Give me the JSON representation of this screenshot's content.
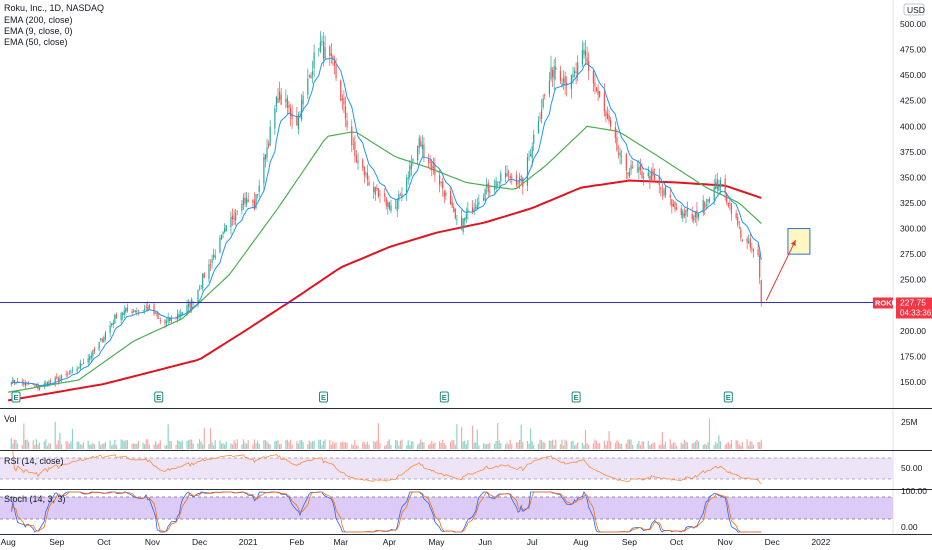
{
  "header": {
    "symbol_title": "Roku, Inc., 1D, NASDAQ",
    "indicators": [
      "EMA (200, close)",
      "EMA (9, close, 0)",
      "EMA (50, close)"
    ],
    "currency": "USD"
  },
  "price_marker": {
    "symbol": "ROKU",
    "price": "227.75",
    "countdown": "04:33:36",
    "color": "#f23645"
  },
  "panes": {
    "volume_label": "Vol",
    "volume_tick": "25M",
    "rsi_label": "RSI (14, close)",
    "rsi_tick": "50.00",
    "stoch_label": "Stoch (14, 3, 3)",
    "stoch_ticks": [
      "100.00",
      "0.00"
    ]
  },
  "earnings_markers": [
    "E",
    "E",
    "E",
    "E",
    "E",
    "E"
  ],
  "colors": {
    "up": "#26a69a",
    "down": "#ef5350",
    "ema200": "#e0141e",
    "ema9": "#2196f3",
    "ema50": "#4caf50",
    "support": "#2f2bd6",
    "rsi_fill": "#e6daf6",
    "stoch_fill": "#d8c4f7"
  },
  "chart_data": {
    "type": "candlestick",
    "title": "Roku, Inc., 1D, NASDAQ",
    "xaxis_labels": [
      "Aug",
      "Sep",
      "Oct",
      "Nov",
      "Dec",
      "2021",
      "Feb",
      "Mar",
      "Apr",
      "May",
      "Jun",
      "Jul",
      "Aug",
      "Sep",
      "Oct",
      "Nov",
      "Dec",
      "2022"
    ],
    "yaxis_ticks": [
      150,
      175,
      200,
      225,
      250,
      275,
      300,
      325,
      350,
      375,
      400,
      425,
      450,
      475,
      500
    ],
    "ylim": [
      130,
      510
    ],
    "support_level": 227.75,
    "last_price": 227.75,
    "price_waypoints": [
      {
        "date": "2020-08-01",
        "price": 152
      },
      {
        "date": "2020-08-20",
        "price": 145
      },
      {
        "date": "2020-09-10",
        "price": 158
      },
      {
        "date": "2020-09-25",
        "price": 180
      },
      {
        "date": "2020-10-10",
        "price": 218
      },
      {
        "date": "2020-10-30",
        "price": 222
      },
      {
        "date": "2020-11-08",
        "price": 206
      },
      {
        "date": "2020-11-25",
        "price": 225
      },
      {
        "date": "2020-12-15",
        "price": 290
      },
      {
        "date": "2020-12-28",
        "price": 330
      },
      {
        "date": "2021-01-05",
        "price": 322
      },
      {
        "date": "2021-01-20",
        "price": 430
      },
      {
        "date": "2021-02-01",
        "price": 405
      },
      {
        "date": "2021-02-15",
        "price": 482
      },
      {
        "date": "2021-02-25",
        "price": 455
      },
      {
        "date": "2021-03-10",
        "price": 370
      },
      {
        "date": "2021-03-25",
        "price": 330
      },
      {
        "date": "2021-04-05",
        "price": 320
      },
      {
        "date": "2021-04-20",
        "price": 385
      },
      {
        "date": "2021-05-05",
        "price": 340
      },
      {
        "date": "2021-05-15",
        "price": 300
      },
      {
        "date": "2021-05-30",
        "price": 335
      },
      {
        "date": "2021-06-15",
        "price": 352
      },
      {
        "date": "2021-06-25",
        "price": 345
      },
      {
        "date": "2021-07-05",
        "price": 410
      },
      {
        "date": "2021-07-15",
        "price": 460
      },
      {
        "date": "2021-07-25",
        "price": 440
      },
      {
        "date": "2021-08-03",
        "price": 470
      },
      {
        "date": "2021-08-12",
        "price": 430
      },
      {
        "date": "2021-08-28",
        "price": 360
      },
      {
        "date": "2021-09-15",
        "price": 350
      },
      {
        "date": "2021-09-30",
        "price": 320
      },
      {
        "date": "2021-10-12",
        "price": 310
      },
      {
        "date": "2021-10-28",
        "price": 345
      },
      {
        "date": "2021-11-05",
        "price": 320
      },
      {
        "date": "2021-11-12",
        "price": 290
      },
      {
        "date": "2021-11-22",
        "price": 272
      },
      {
        "date": "2021-11-24",
        "price": 227.75
      }
    ],
    "ema200_waypoints": [
      {
        "date": "2020-08-01",
        "price": 132
      },
      {
        "date": "2020-10-01",
        "price": 148
      },
      {
        "date": "2020-12-01",
        "price": 172
      },
      {
        "date": "2021-01-01",
        "price": 202
      },
      {
        "date": "2021-02-01",
        "price": 233
      },
      {
        "date": "2021-03-01",
        "price": 262
      },
      {
        "date": "2021-04-01",
        "price": 282
      },
      {
        "date": "2021-05-01",
        "price": 296
      },
      {
        "date": "2021-06-01",
        "price": 306
      },
      {
        "date": "2021-07-01",
        "price": 320
      },
      {
        "date": "2021-08-01",
        "price": 340
      },
      {
        "date": "2021-09-01",
        "price": 347
      },
      {
        "date": "2021-10-01",
        "price": 345
      },
      {
        "date": "2021-11-01",
        "price": 342
      },
      {
        "date": "2021-11-24",
        "price": 330
      }
    ],
    "ema50_waypoints": [
      {
        "date": "2020-08-01",
        "price": 140
      },
      {
        "date": "2020-09-15",
        "price": 152
      },
      {
        "date": "2020-10-20",
        "price": 190
      },
      {
        "date": "2020-11-20",
        "price": 212
      },
      {
        "date": "2020-12-20",
        "price": 255
      },
      {
        "date": "2021-01-20",
        "price": 320
      },
      {
        "date": "2021-02-20",
        "price": 390
      },
      {
        "date": "2021-03-10",
        "price": 395
      },
      {
        "date": "2021-04-05",
        "price": 370
      },
      {
        "date": "2021-04-25",
        "price": 360
      },
      {
        "date": "2021-05-20",
        "price": 345
      },
      {
        "date": "2021-06-20",
        "price": 338
      },
      {
        "date": "2021-07-10",
        "price": 362
      },
      {
        "date": "2021-08-05",
        "price": 400
      },
      {
        "date": "2021-08-25",
        "price": 395
      },
      {
        "date": "2021-09-20",
        "price": 370
      },
      {
        "date": "2021-10-20",
        "price": 340
      },
      {
        "date": "2021-11-10",
        "price": 325
      },
      {
        "date": "2021-11-24",
        "price": 305
      }
    ],
    "target_box": {
      "date_start": "2021-12-11",
      "date_end": "2021-12-25",
      "price_low": 275,
      "price_high": 300
    }
  }
}
